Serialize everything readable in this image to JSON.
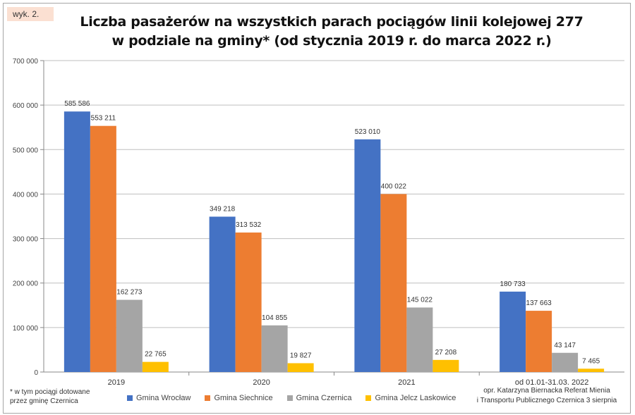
{
  "badge": "wyk. 2.",
  "chart_data": {
    "type": "bar",
    "title": "Liczba pasażerów na wszystkich parach pociągów linii kolejowej 277 w podziale na gminy* (od stycznia 2019 r. do marca 2022 r.)",
    "title_lines": [
      "Liczba pasażerów na wszystkich parach pociągów linii kolejowej 277",
      "w podziale na gminy* (od stycznia 2019 r. do marca 2022 r.)"
    ],
    "xlabel": "",
    "ylabel": "",
    "ylim": [
      0,
      700000
    ],
    "yticks": [
      0,
      100000,
      200000,
      300000,
      400000,
      500000,
      600000,
      700000
    ],
    "ytick_labels": [
      "0",
      "100 000",
      "200 000",
      "300 000",
      "400 000",
      "500 000",
      "600 000",
      "700 000"
    ],
    "grid": true,
    "legend_position": "bottom",
    "categories": [
      "2019",
      "2020",
      "2021",
      "od 01.01-31.03. 2022"
    ],
    "series": [
      {
        "name": "Gmina Wrocław",
        "color": "#4472c4",
        "values": [
          585586,
          349218,
          523010,
          180733
        ],
        "labels": [
          "585 586",
          "349 218",
          "523 010",
          "180 733"
        ]
      },
      {
        "name": "Gmina Siechnice",
        "color": "#ed7d31",
        "values": [
          553211,
          313532,
          400022,
          137663
        ],
        "labels": [
          "553 211",
          "313 532",
          "400 022",
          "137 663"
        ]
      },
      {
        "name": "Gmina Czernica",
        "color": "#a5a5a5",
        "values": [
          162273,
          104855,
          145022,
          43147
        ],
        "labels": [
          "162 273",
          "104 855",
          "145 022",
          "43 147"
        ]
      },
      {
        "name": "Gmina Jelcz Laskowice",
        "color": "#ffc000",
        "values": [
          22765,
          19827,
          27208,
          7465
        ],
        "labels": [
          "22 765",
          "19 827",
          "27 208",
          "7 465"
        ]
      }
    ]
  },
  "footnote": [
    "* w tym pociągi dotowane",
    "przez gminę Czernica"
  ],
  "credit": [
    "opr. Katarzyna Biernacka Referat Mienia",
    "i Transportu Publicznego Czernica 3 sierpnia"
  ]
}
